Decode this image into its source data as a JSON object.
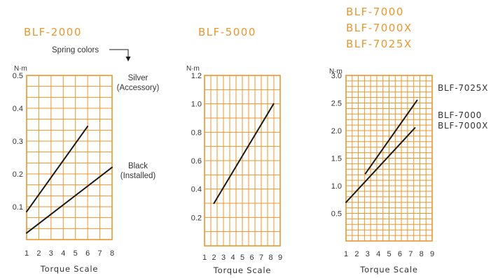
{
  "colors": {
    "grid": "#e9962d",
    "title": "#e9962d",
    "line": "#1a1a1a",
    "text": "#333333"
  },
  "chart_data": [
    {
      "type": "line",
      "title_lines": [
        "BLF-2000"
      ],
      "ylabel": "N·m",
      "xlabel": "Torque Scale",
      "xlim": [
        1,
        8
      ],
      "ylim": [
        0,
        0.5
      ],
      "x_ticks": [
        "1",
        "2",
        "3",
        "4",
        "5",
        "6",
        "7",
        "8"
      ],
      "y_ticks": [
        {
          "value": 0.1,
          "label": "0.1"
        },
        {
          "value": 0.2,
          "label": "0.2"
        },
        {
          "value": 0.3,
          "label": "0.3"
        },
        {
          "value": 0.4,
          "label": "0.4"
        },
        {
          "value": 0.5,
          "label": "0.5"
        }
      ],
      "annotation": "Spring colors",
      "series": [
        {
          "name": "Silver (Accessory)",
          "label_lines": [
            "Silver",
            "(Accessory)"
          ],
          "points": [
            [
              1,
              0.085
            ],
            [
              6,
              0.345
            ]
          ]
        },
        {
          "name": "Black (Installed)",
          "label_lines": [
            "Black",
            "(Installed)"
          ],
          "points": [
            [
              1,
              0.02
            ],
            [
              8,
              0.22
            ]
          ]
        }
      ]
    },
    {
      "type": "line",
      "title_lines": [
        "BLF-5000"
      ],
      "ylabel": "N·m",
      "xlabel": "Torque Scale",
      "xlim": [
        1,
        9
      ],
      "ylim": [
        0,
        1.2
      ],
      "x_ticks": [
        "1",
        "2",
        "3",
        "4",
        "5",
        "6",
        "7",
        "8",
        "9"
      ],
      "y_ticks": [
        {
          "value": 0.2,
          "label": "0.2"
        },
        {
          "value": 0.4,
          "label": "0.4"
        },
        {
          "value": 0.6,
          "label": "0.6"
        },
        {
          "value": 0.8,
          "label": "0.8"
        },
        {
          "value": 1.0,
          "label": "1.0"
        },
        {
          "value": 1.2,
          "label": "1.2"
        }
      ],
      "series": [
        {
          "points": [
            [
              2,
              0.3
            ],
            [
              8.3,
              1.0
            ]
          ]
        }
      ]
    },
    {
      "type": "line",
      "title_lines": [
        "BLF-7000",
        "BLF-7000X",
        "BLF-7025X"
      ],
      "ylabel": "N·m",
      "xlabel": "Torque Scale",
      "xlim": [
        1,
        9
      ],
      "ylim": [
        0,
        3.0
      ],
      "x_ticks": [
        "1",
        "2",
        "3",
        "4",
        "5",
        "6",
        "7",
        "8",
        "9"
      ],
      "y_ticks": [
        {
          "value": 0.5,
          "label": "0.5"
        },
        {
          "value": 1.0,
          "label": "1.0"
        },
        {
          "value": 1.5,
          "label": "1.5"
        },
        {
          "value": 2.0,
          "label": "2.0"
        },
        {
          "value": 2.5,
          "label": "2.5"
        },
        {
          "value": 3.0,
          "label": "3.0"
        }
      ],
      "series": [
        {
          "name": "BLF-7025X",
          "label_lines": [
            "BLF-7025X"
          ],
          "points": [
            [
              2.8,
              1.22
            ],
            [
              7.6,
              2.55
            ]
          ]
        },
        {
          "name": "BLF-7000 / BLF-7000X",
          "label_lines": [
            "BLF-7000",
            "BLF-7000X"
          ],
          "points": [
            [
              1,
              0.7
            ],
            [
              7.4,
              2.05
            ]
          ]
        }
      ]
    }
  ]
}
